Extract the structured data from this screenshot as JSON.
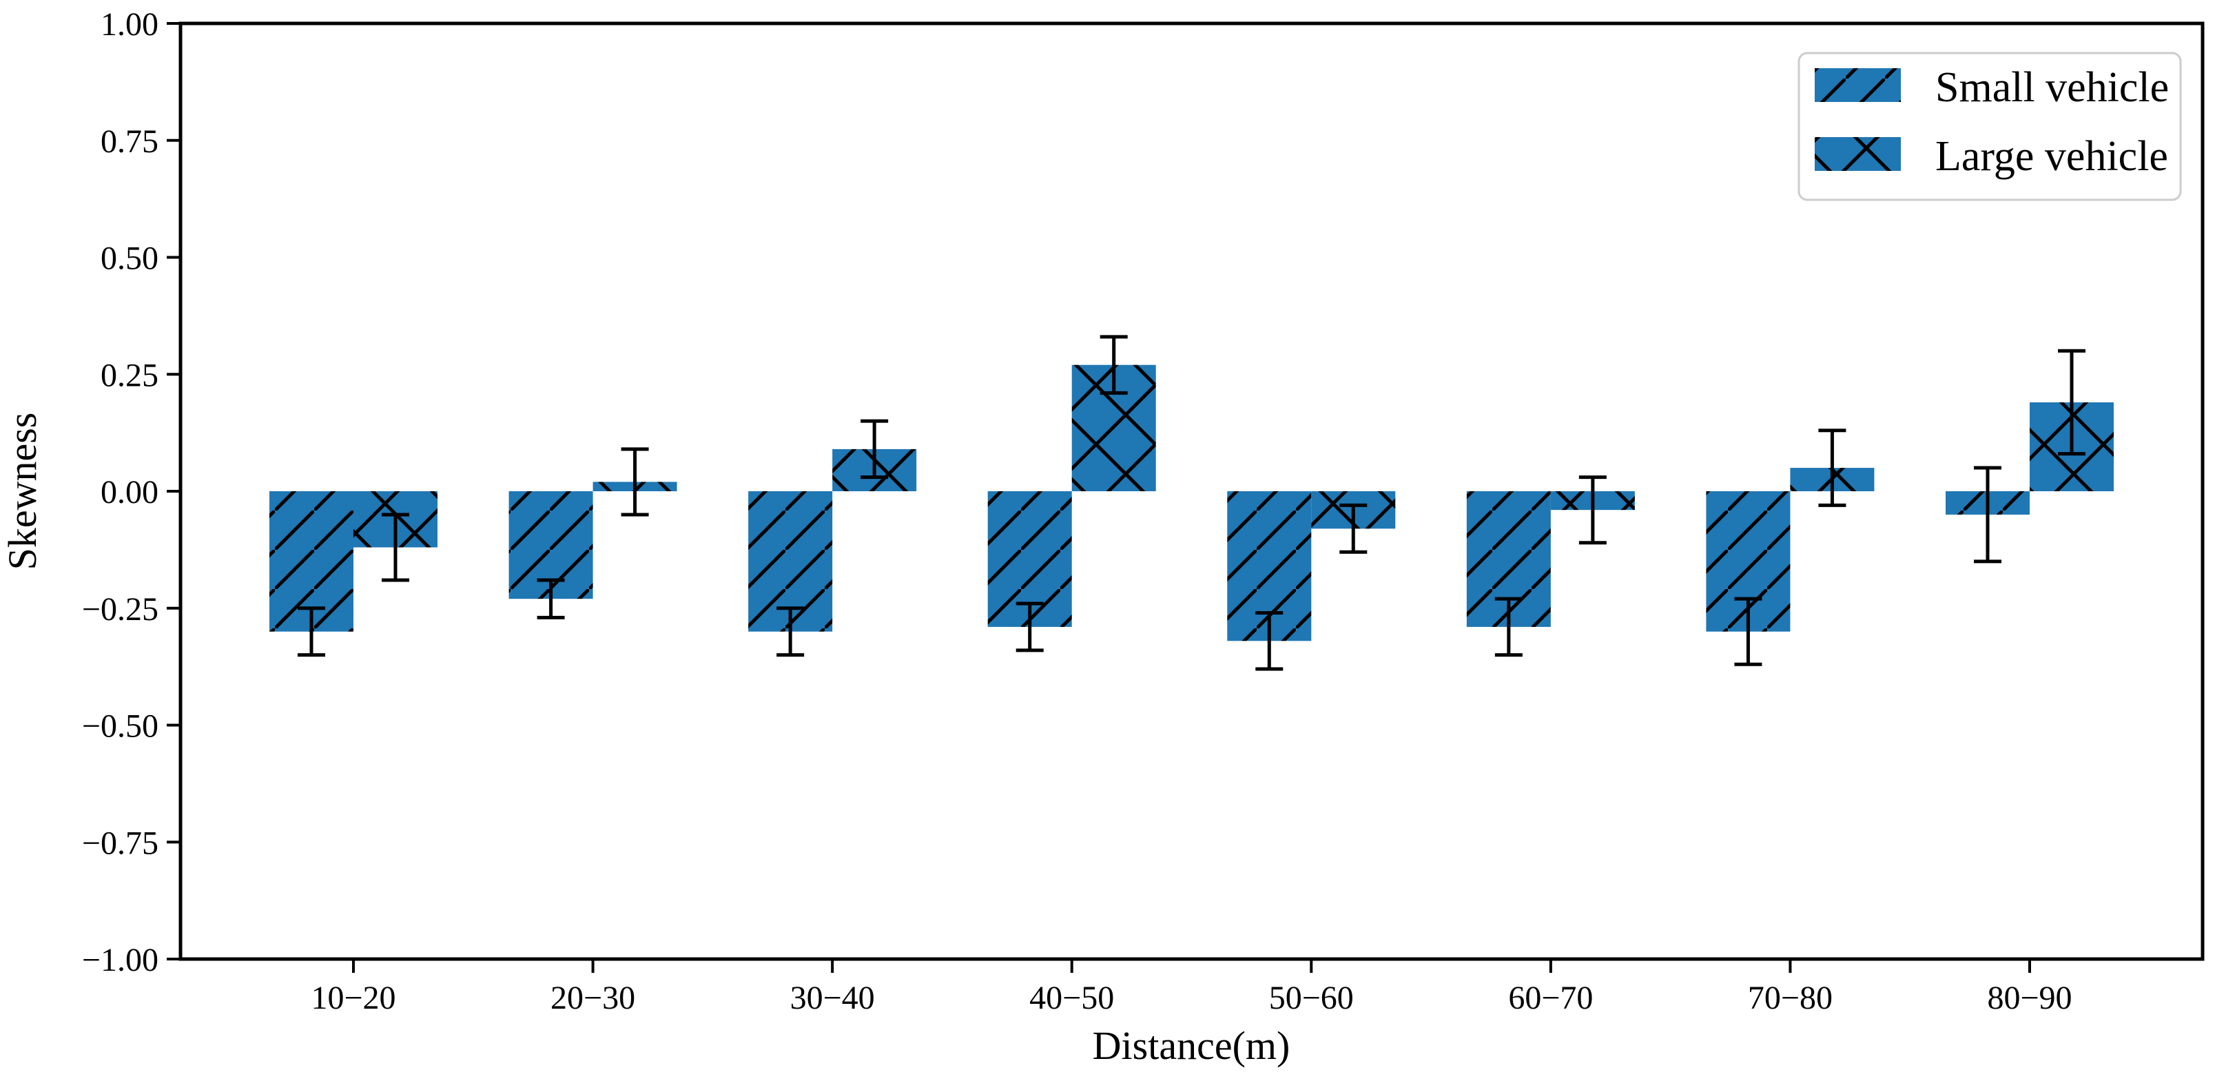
{
  "figure": {
    "background": "#ffffff",
    "bar_color": "#1f77b4",
    "hatch_color": "#000000",
    "axis_color": "#000000",
    "error_bar_color": "#000000",
    "legend_border_color": "#cccccc"
  },
  "chart_data": {
    "type": "bar",
    "title": "",
    "xlabel": "Distance(m)",
    "ylabel": "Skewness",
    "categories": [
      "10−20",
      "20−30",
      "30−40",
      "40−50",
      "50−60",
      "60−70",
      "70−80",
      "80−90"
    ],
    "series": [
      {
        "name": "Small vehicle",
        "hatch": "///",
        "values": [
          -0.3,
          -0.23,
          -0.3,
          -0.29,
          -0.32,
          -0.29,
          -0.3,
          -0.05
        ],
        "errors": [
          0.05,
          0.04,
          0.05,
          0.05,
          0.06,
          0.06,
          0.07,
          0.1
        ]
      },
      {
        "name": "Large vehicle",
        "hatch": "xx",
        "values": [
          -0.12,
          0.02,
          0.09,
          0.27,
          -0.08,
          -0.04,
          0.05,
          0.19
        ],
        "errors": [
          0.07,
          0.07,
          0.06,
          0.06,
          0.05,
          0.07,
          0.08,
          0.11
        ]
      }
    ],
    "ylim": [
      -1.0,
      1.0
    ],
    "yticks": [
      1.0,
      0.75,
      0.5,
      0.25,
      0.0,
      -0.25,
      -0.5,
      -0.75,
      -1.0
    ],
    "ytick_labels": [
      "1.00",
      "0.75",
      "0.50",
      "0.25",
      "0.00",
      "−0.25",
      "−0.50",
      "−0.75",
      "−1.00"
    ],
    "legend_position": "upper right",
    "grid": false
  }
}
